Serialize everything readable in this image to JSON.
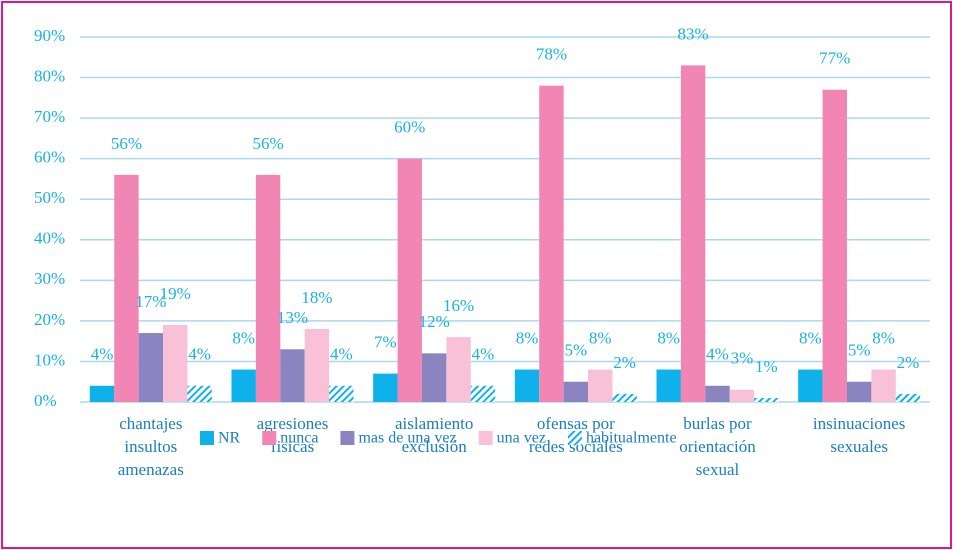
{
  "chart_data": {
    "type": "bar",
    "categories": [
      "chantajes insultos amenazas",
      "agresiones fisicas",
      "aislamiento exclusión",
      "ofensas por redes sociales",
      "burlas por orientación sexual",
      "insinuaciones sexuales"
    ],
    "series": [
      {
        "name": "NR",
        "color": "#0fb1ea",
        "values": [
          4,
          8,
          7,
          8,
          8,
          8
        ],
        "value_labels": [
          "4%",
          "8%",
          "7%",
          "8%",
          "8%",
          "8%"
        ]
      },
      {
        "name": "nunca",
        "color": "#f186b5",
        "values": [
          56,
          56,
          60,
          78,
          83,
          77
        ],
        "value_labels": [
          "56%",
          "56%",
          "60%",
          "78%",
          "83%",
          "77%"
        ]
      },
      {
        "name": "mas de una vez",
        "color": "#8a84c0",
        "values": [
          17,
          13,
          12,
          5,
          4,
          5
        ],
        "value_labels": [
          "17%",
          "13%",
          "12%",
          "5%",
          "4%",
          "5%"
        ]
      },
      {
        "name": "una vez",
        "color": "#f8c1d7",
        "values": [
          19,
          18,
          16,
          8,
          3,
          8
        ],
        "value_labels": [
          "19%",
          "18%",
          "16%",
          "8%",
          "3%",
          "8%"
        ]
      },
      {
        "name": "habitualmente",
        "color": "#0fb1ea",
        "pattern": "hatch",
        "values": [
          4,
          4,
          4,
          2,
          1,
          2
        ],
        "value_labels": [
          "4%",
          "4%",
          "4%",
          "2%",
          "1%",
          "2%"
        ]
      }
    ],
    "ylim": [
      0,
      90
    ],
    "yticks": [
      {
        "value": 0,
        "label": "0%"
      },
      {
        "value": 10,
        "label": "10%"
      },
      {
        "value": 20,
        "label": "20%"
      },
      {
        "value": 30,
        "label": "30%"
      },
      {
        "value": 40,
        "label": "40%"
      },
      {
        "value": 50,
        "label": "50%"
      },
      {
        "value": 60,
        "label": "60%"
      },
      {
        "value": 70,
        "label": "70%"
      },
      {
        "value": 80,
        "label": "80%"
      },
      {
        "value": 90,
        "label": "90%"
      }
    ],
    "grid": true,
    "legend": "bottom"
  }
}
